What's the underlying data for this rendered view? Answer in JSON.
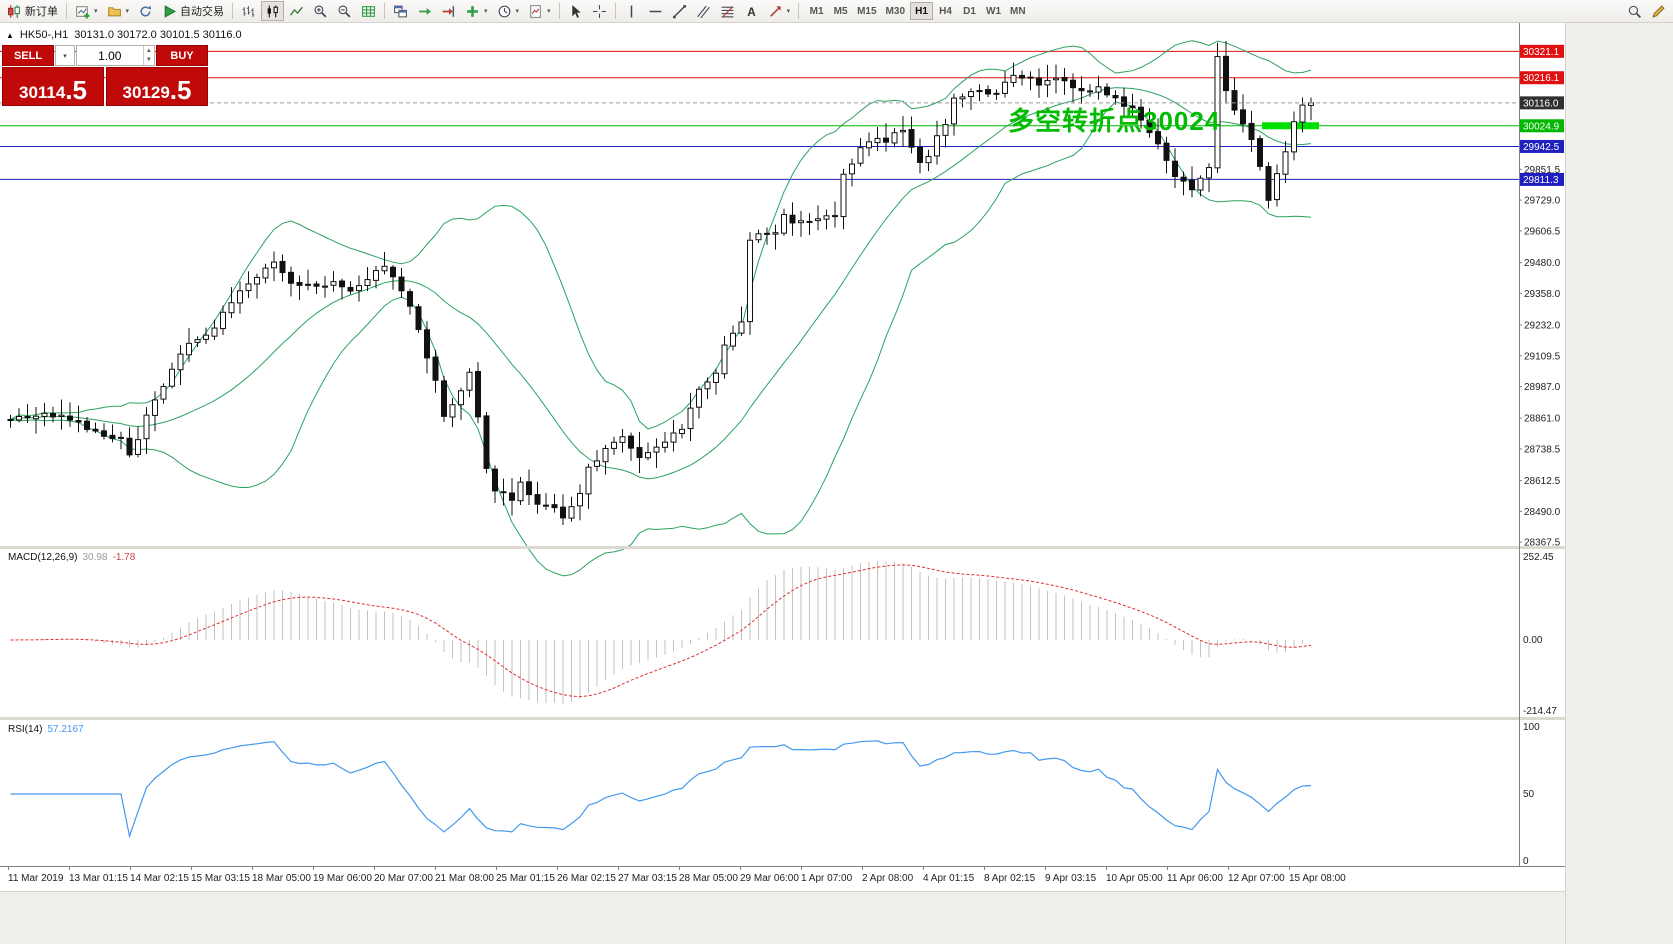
{
  "toolbar": {
    "new_order": "新订单",
    "autotrading": "自动交易",
    "timeframes": [
      "M1",
      "M5",
      "M15",
      "M30",
      "H1",
      "H4",
      "D1",
      "W1",
      "MN"
    ],
    "active_timeframe": "H1"
  },
  "chart": {
    "symbol_header": "HK50-,H1",
    "ohlc": "30131.0 30172.0 30101.5 30116.0",
    "annotation": {
      "text": "多空转折点30024",
      "color": "#00BB00"
    }
  },
  "trade_panel": {
    "sell_label": "SELL",
    "buy_label": "BUY",
    "volume": "1.00",
    "sell_price_big": "30114",
    "sell_price_frac": ".5",
    "buy_price_big": "30129",
    "buy_price_frac": ".5"
  },
  "hlines": [
    {
      "price": 30321.1,
      "label": "30321.1",
      "color": "#e01010",
      "highlight": false
    },
    {
      "price": 30216.1,
      "label": "30216.1",
      "color": "#e01010",
      "highlight": false
    },
    {
      "price": 30024.9,
      "label": "30024.9",
      "color": "#00b800",
      "highlight": true,
      "highlight_color": "#00e000"
    },
    {
      "price": 29942.5,
      "label": "29942.5",
      "color": "#2020c0",
      "highlight": false
    },
    {
      "price": 29811.3,
      "label": "29811.3",
      "color": "#2020c0",
      "highlight": false
    }
  ],
  "bid_line": {
    "price": 30116.0,
    "label": "30116.0",
    "color": "#303030"
  },
  "price_axis": {
    "ticks": [
      {
        "price": 29851.5,
        "label": "29851.5"
      },
      {
        "price": 29729.0,
        "label": "29729.0"
      },
      {
        "price": 29606.5,
        "label": "29606.5"
      },
      {
        "price": 29480.0,
        "label": "29480.0"
      },
      {
        "price": 29358.0,
        "label": "29358.0"
      },
      {
        "price": 29232.0,
        "label": "29232.0"
      },
      {
        "price": 29109.5,
        "label": "29109.5"
      },
      {
        "price": 28987.0,
        "label": "28987.0"
      },
      {
        "price": 28861.0,
        "label": "28861.0"
      },
      {
        "price": 28738.5,
        "label": "28738.5"
      },
      {
        "price": 28612.5,
        "label": "28612.5"
      },
      {
        "price": 28490.0,
        "label": "28490.0"
      },
      {
        "price": 28367.5,
        "label": "28367.5"
      }
    ]
  },
  "time_axis": [
    "11 Mar 2019",
    "13 Mar 01:15",
    "14 Mar 02:15",
    "15 Mar 03:15",
    "18 Mar 05:00",
    "19 Mar 06:00",
    "20 Mar 07:00",
    "21 Mar 08:00",
    "25 Mar 01:15",
    "26 Mar 02:15",
    "27 Mar 03:15",
    "28 Mar 05:00",
    "29 Mar 06:00",
    "1 Apr 07:00",
    "2 Apr 08:00",
    "4 Apr 01:15",
    "8 Apr 02:15",
    "9 Apr 03:15",
    "10 Apr 05:00",
    "11 Apr 06:00",
    "12 Apr 07:00",
    "15 Apr 08:00"
  ],
  "macd": {
    "label": "MACD(12,26,9)",
    "value_main": "30.98",
    "value_signal": "-1.78",
    "axis": [
      "252.45",
      "0.00",
      "-214.47"
    ]
  },
  "rsi": {
    "label": "RSI(14)",
    "value": "57.2167",
    "axis": [
      "100",
      "50",
      "0"
    ]
  },
  "chart_data": {
    "type": "candlestick",
    "symbol": "HK50-",
    "timeframe": "H1",
    "open": 30131.0,
    "high": 30172.0,
    "low": 30101.5,
    "close": 30116.0,
    "bars": 154,
    "ylim": [
      28356,
      30410
    ],
    "price_path": [
      [
        0,
        28854
      ],
      [
        5,
        28874
      ],
      [
        10,
        28814
      ],
      [
        13,
        28774
      ],
      [
        14,
        28715
      ],
      [
        17,
        28934
      ],
      [
        19,
        29053
      ],
      [
        21,
        29153
      ],
      [
        24,
        29213
      ],
      [
        26,
        29333
      ],
      [
        28,
        29392
      ],
      [
        31,
        29472
      ],
      [
        33,
        29412
      ],
      [
        36,
        29373
      ],
      [
        38,
        29392
      ],
      [
        40,
        29352
      ],
      [
        43,
        29452
      ],
      [
        44,
        29472
      ],
      [
        46,
        29373
      ],
      [
        48,
        29213
      ],
      [
        50,
        29013
      ],
      [
        51,
        28854
      ],
      [
        53,
        28974
      ],
      [
        54,
        29053
      ],
      [
        56,
        28654
      ],
      [
        57,
        28574
      ],
      [
        59,
        28535
      ],
      [
        60,
        28614
      ],
      [
        62,
        28515
      ],
      [
        64,
        28495
      ],
      [
        65,
        28455
      ],
      [
        67,
        28555
      ],
      [
        68,
        28654
      ],
      [
        70,
        28754
      ],
      [
        72,
        28774
      ],
      [
        74,
        28694
      ],
      [
        76,
        28754
      ],
      [
        77,
        28774
      ],
      [
        79,
        28814
      ],
      [
        81,
        28974
      ],
      [
        83,
        29053
      ],
      [
        84,
        29153
      ],
      [
        86,
        29253
      ],
      [
        87,
        29572
      ],
      [
        88,
        29592
      ],
      [
        90,
        29612
      ],
      [
        91,
        29672
      ],
      [
        93,
        29632
      ],
      [
        95,
        29652
      ],
      [
        97,
        29672
      ],
      [
        98,
        29831
      ],
      [
        100,
        29931
      ],
      [
        101,
        29951
      ],
      [
        103,
        29971
      ],
      [
        105,
        30011
      ],
      [
        107,
        29891
      ],
      [
        108,
        29911
      ],
      [
        110,
        30031
      ],
      [
        111,
        30131
      ],
      [
        113,
        30151
      ],
      [
        114,
        30171
      ],
      [
        116,
        30151
      ],
      [
        118,
        30230
      ],
      [
        120,
        30210
      ],
      [
        121,
        30190
      ],
      [
        123,
        30210
      ],
      [
        125,
        30170
      ],
      [
        127,
        30151
      ],
      [
        128,
        30170
      ],
      [
        130,
        30131
      ],
      [
        132,
        30091
      ],
      [
        134,
        30011
      ],
      [
        136,
        29891
      ],
      [
        137,
        29811
      ],
      [
        139,
        29771
      ],
      [
        141,
        29851
      ],
      [
        142,
        30290
      ],
      [
        143,
        30170
      ],
      [
        144,
        30091
      ],
      [
        146,
        29971
      ],
      [
        147,
        29851
      ],
      [
        148,
        29731
      ],
      [
        150,
        29931
      ],
      [
        151,
        30051
      ],
      [
        152,
        30111
      ],
      [
        153,
        30116
      ]
    ],
    "overlays": [
      {
        "name": "Bollinger Bands",
        "period": 20,
        "deviation": 2,
        "color": "#2aa35f"
      }
    ],
    "panes": [
      {
        "name": "MACD",
        "params": "12,26,9",
        "values": [
          30.98,
          -1.78
        ],
        "range": [
          -214.47,
          252.45
        ]
      },
      {
        "name": "RSI",
        "params": "14",
        "value": 57.2167,
        "range": [
          0,
          100
        ]
      }
    ]
  }
}
